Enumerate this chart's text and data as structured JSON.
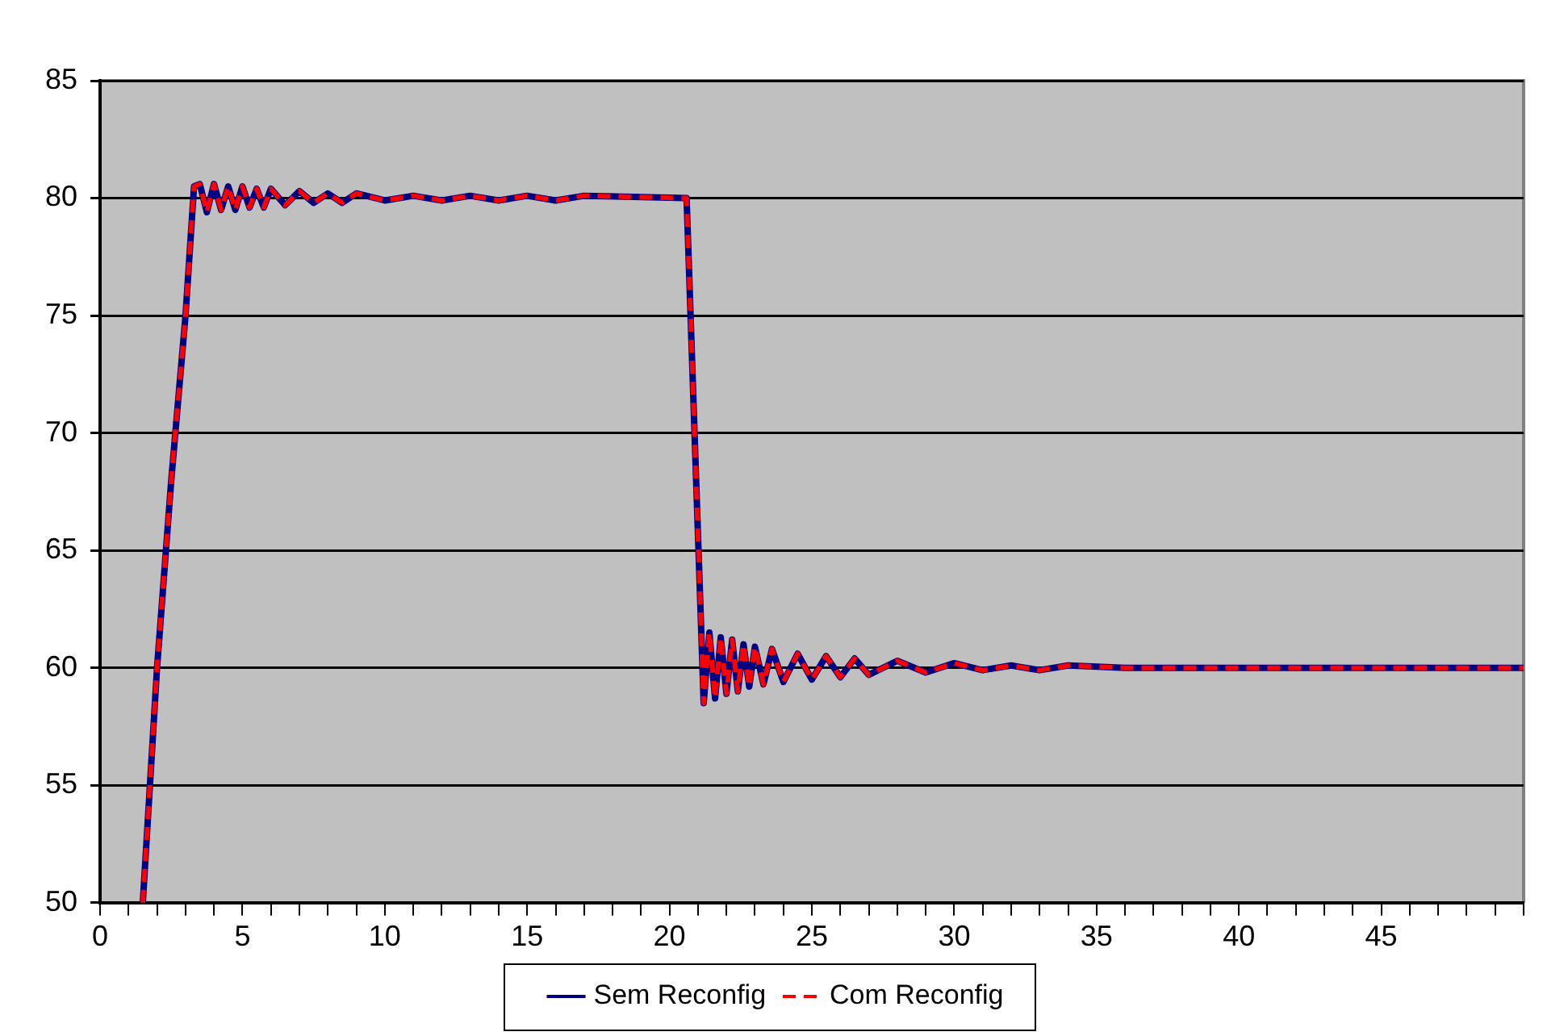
{
  "chart_data": {
    "type": "line",
    "xlim": [
      0,
      50
    ],
    "xticks": [
      0,
      {
        "value": 1,
        "label": null
      },
      {
        "value": 2,
        "label": null
      },
      {
        "value": 3,
        "label": null
      },
      {
        "value": 4,
        "label": null
      },
      5,
      {
        "value": 6,
        "label": null
      },
      {
        "value": 7,
        "label": null
      },
      {
        "value": 8,
        "label": null
      },
      {
        "value": 9,
        "label": null
      },
      10,
      {
        "value": 11,
        "label": null
      },
      {
        "value": 12,
        "label": null
      },
      {
        "value": 13,
        "label": null
      },
      {
        "value": 14,
        "label": null
      },
      15,
      {
        "value": 16,
        "label": null
      },
      {
        "value": 17,
        "label": null
      },
      {
        "value": 18,
        "label": null
      },
      {
        "value": 19,
        "label": null
      },
      20,
      {
        "value": 21,
        "label": null
      },
      {
        "value": 22,
        "label": null
      },
      {
        "value": 23,
        "label": null
      },
      {
        "value": 24,
        "label": null
      },
      25,
      {
        "value": 26,
        "label": null
      },
      {
        "value": 27,
        "label": null
      },
      {
        "value": 28,
        "label": null
      },
      {
        "value": 29,
        "label": null
      },
      30,
      {
        "value": 31,
        "label": null
      },
      {
        "value": 32,
        "label": null
      },
      {
        "value": 33,
        "label": null
      },
      {
        "value": 34,
        "label": null
      },
      35,
      {
        "value": 36,
        "label": null
      },
      {
        "value": 37,
        "label": null
      },
      {
        "value": 38,
        "label": null
      },
      {
        "value": 39,
        "label": null
      },
      40,
      {
        "value": 41,
        "label": null
      },
      {
        "value": 42,
        "label": null
      },
      {
        "value": 43,
        "label": null
      },
      {
        "value": 44,
        "label": null
      },
      45,
      {
        "value": 46,
        "label": null
      },
      {
        "value": 47,
        "label": null
      },
      {
        "value": 48,
        "label": null
      },
      {
        "value": 49,
        "label": null
      },
      {
        "value": 50,
        "label": null
      }
    ],
    "ylim": [
      50,
      85
    ],
    "yticks": [
      50,
      55,
      60,
      65,
      70,
      75,
      80,
      85
    ],
    "grid": "y",
    "legend": "bottom",
    "marker": "none",
    "x": [
      1.5,
      2.0,
      2.5,
      3.0,
      3.3,
      3.5,
      3.75,
      4.0,
      4.25,
      4.5,
      4.75,
      5.0,
      5.25,
      5.5,
      5.75,
      6.0,
      6.5,
      7.0,
      7.5,
      8.0,
      8.5,
      9.0,
      10,
      11,
      12,
      13,
      14,
      15,
      16,
      17,
      20.6,
      21.2,
      21.4,
      21.6,
      21.8,
      22.0,
      22.2,
      22.4,
      22.6,
      22.8,
      23.0,
      23.3,
      23.6,
      24.0,
      24.5,
      25.0,
      25.5,
      26.0,
      26.5,
      27,
      28,
      29,
      30,
      31,
      32,
      33,
      34,
      36,
      50
    ],
    "series": [
      {
        "name": "Sem Reconfig",
        "color": "#000080",
        "line_style": "solid",
        "values": [
          50,
          60,
          68,
          75,
          80.5,
          80.6,
          79.4,
          80.6,
          79.5,
          80.5,
          79.5,
          80.5,
          79.6,
          80.4,
          79.6,
          80.4,
          79.7,
          80.3,
          79.8,
          80.2,
          79.8,
          80.2,
          79.9,
          80.1,
          79.9,
          80.1,
          79.9,
          80.1,
          79.9,
          80.1,
          80,
          58.5,
          61.5,
          58.7,
          61.3,
          58.9,
          61.2,
          59.0,
          61.0,
          59.2,
          60.9,
          59.3,
          60.8,
          59.4,
          60.6,
          59.5,
          60.5,
          59.6,
          60.4,
          59.7,
          60.3,
          59.8,
          60.2,
          59.9,
          60.1,
          59.9,
          60.1,
          60,
          60
        ]
      },
      {
        "name": "Com Reconfig",
        "color": "#ff0000",
        "line_style": "dashed",
        "values": [
          50,
          60,
          68,
          75,
          80.5,
          80.6,
          79.4,
          80.6,
          79.5,
          80.5,
          79.5,
          80.5,
          79.6,
          80.4,
          79.6,
          80.4,
          79.7,
          80.3,
          79.8,
          80.2,
          79.8,
          80.2,
          79.9,
          80.1,
          79.9,
          80.1,
          79.9,
          80.1,
          79.9,
          80.1,
          80,
          58.5,
          61.5,
          58.7,
          61.3,
          58.9,
          61.2,
          59.0,
          61.0,
          59.2,
          60.9,
          59.3,
          60.8,
          59.4,
          60.6,
          59.5,
          60.5,
          59.6,
          60.4,
          59.7,
          60.3,
          59.8,
          60.2,
          59.9,
          60.1,
          59.9,
          60.1,
          60,
          60
        ]
      }
    ]
  }
}
